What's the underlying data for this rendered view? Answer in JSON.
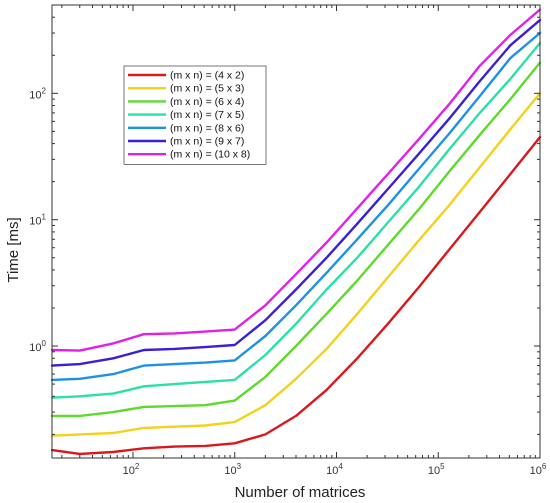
{
  "chart_data": {
    "type": "line",
    "xlabel": "Number of matrices",
    "ylabel": "Time [ms]",
    "x_scale": "log",
    "y_scale": "log",
    "xlim": [
      16,
      1000000
    ],
    "ylim": [
      0.13,
      500
    ],
    "x_ticks": [
      {
        "value": 100,
        "base": "10",
        "exp": "2"
      },
      {
        "value": 1000,
        "base": "10",
        "exp": "3"
      },
      {
        "value": 10000,
        "base": "10",
        "exp": "4"
      },
      {
        "value": 100000,
        "base": "10",
        "exp": "5"
      },
      {
        "value": 1000000,
        "base": "10",
        "exp": "6"
      }
    ],
    "y_ticks": [
      {
        "value": 1,
        "base": "10",
        "exp": "0"
      },
      {
        "value": 10,
        "base": "10",
        "exp": "1"
      },
      {
        "value": 100,
        "base": "10",
        "exp": "2"
      }
    ],
    "grid": false,
    "legend_position": "top-left",
    "x": [
      16,
      30,
      64,
      128,
      256,
      512,
      1000,
      2000,
      4000,
      8000,
      16000,
      32000,
      64000,
      128000,
      256000,
      512000,
      1000000
    ],
    "series": [
      {
        "name": "(m x n) = (4 x 2)",
        "color": "#d7191c",
        "values": [
          0.15,
          0.14,
          0.145,
          0.155,
          0.16,
          0.162,
          0.17,
          0.2,
          0.28,
          0.45,
          0.8,
          1.5,
          2.9,
          5.8,
          11.5,
          23,
          45
        ]
      },
      {
        "name": "(m x n) = (5 x 3)",
        "color": "#f2d21b",
        "values": [
          0.195,
          0.2,
          0.205,
          0.225,
          0.23,
          0.235,
          0.25,
          0.34,
          0.55,
          0.95,
          1.8,
          3.5,
          6.8,
          13,
          26,
          52,
          100
        ]
      },
      {
        "name": "(m x n) = (6 x 4)",
        "color": "#5fd92b",
        "values": [
          0.28,
          0.28,
          0.3,
          0.33,
          0.335,
          0.34,
          0.37,
          0.57,
          1.0,
          1.8,
          3.3,
          6.3,
          12,
          24,
          47,
          90,
          175
        ]
      },
      {
        "name": "(m x n) = (7 x 5)",
        "color": "#2be0a8",
        "values": [
          0.39,
          0.4,
          0.42,
          0.48,
          0.5,
          0.52,
          0.54,
          0.85,
          1.5,
          2.8,
          5.0,
          9.5,
          18,
          36,
          70,
          130,
          250
        ]
      },
      {
        "name": "(m x n) = (8 x 6)",
        "color": "#1e90e8",
        "values": [
          0.54,
          0.55,
          0.6,
          0.7,
          0.72,
          0.74,
          0.77,
          1.2,
          2.1,
          3.8,
          7.0,
          13,
          25,
          48,
          95,
          190,
          300
        ]
      },
      {
        "name": "(m x n) = (9 x 7)",
        "color": "#3a1fd6",
        "values": [
          0.7,
          0.72,
          0.8,
          0.93,
          0.95,
          0.98,
          1.02,
          1.6,
          2.8,
          5.0,
          9.3,
          17.5,
          33,
          63,
          125,
          240,
          380
        ]
      },
      {
        "name": "(m x n) = (10 x 8)",
        "color": "#e020e8",
        "values": [
          0.93,
          0.92,
          1.05,
          1.24,
          1.26,
          1.3,
          1.35,
          2.1,
          3.7,
          6.6,
          12.3,
          23,
          43,
          82,
          165,
          290,
          460
        ]
      }
    ]
  }
}
